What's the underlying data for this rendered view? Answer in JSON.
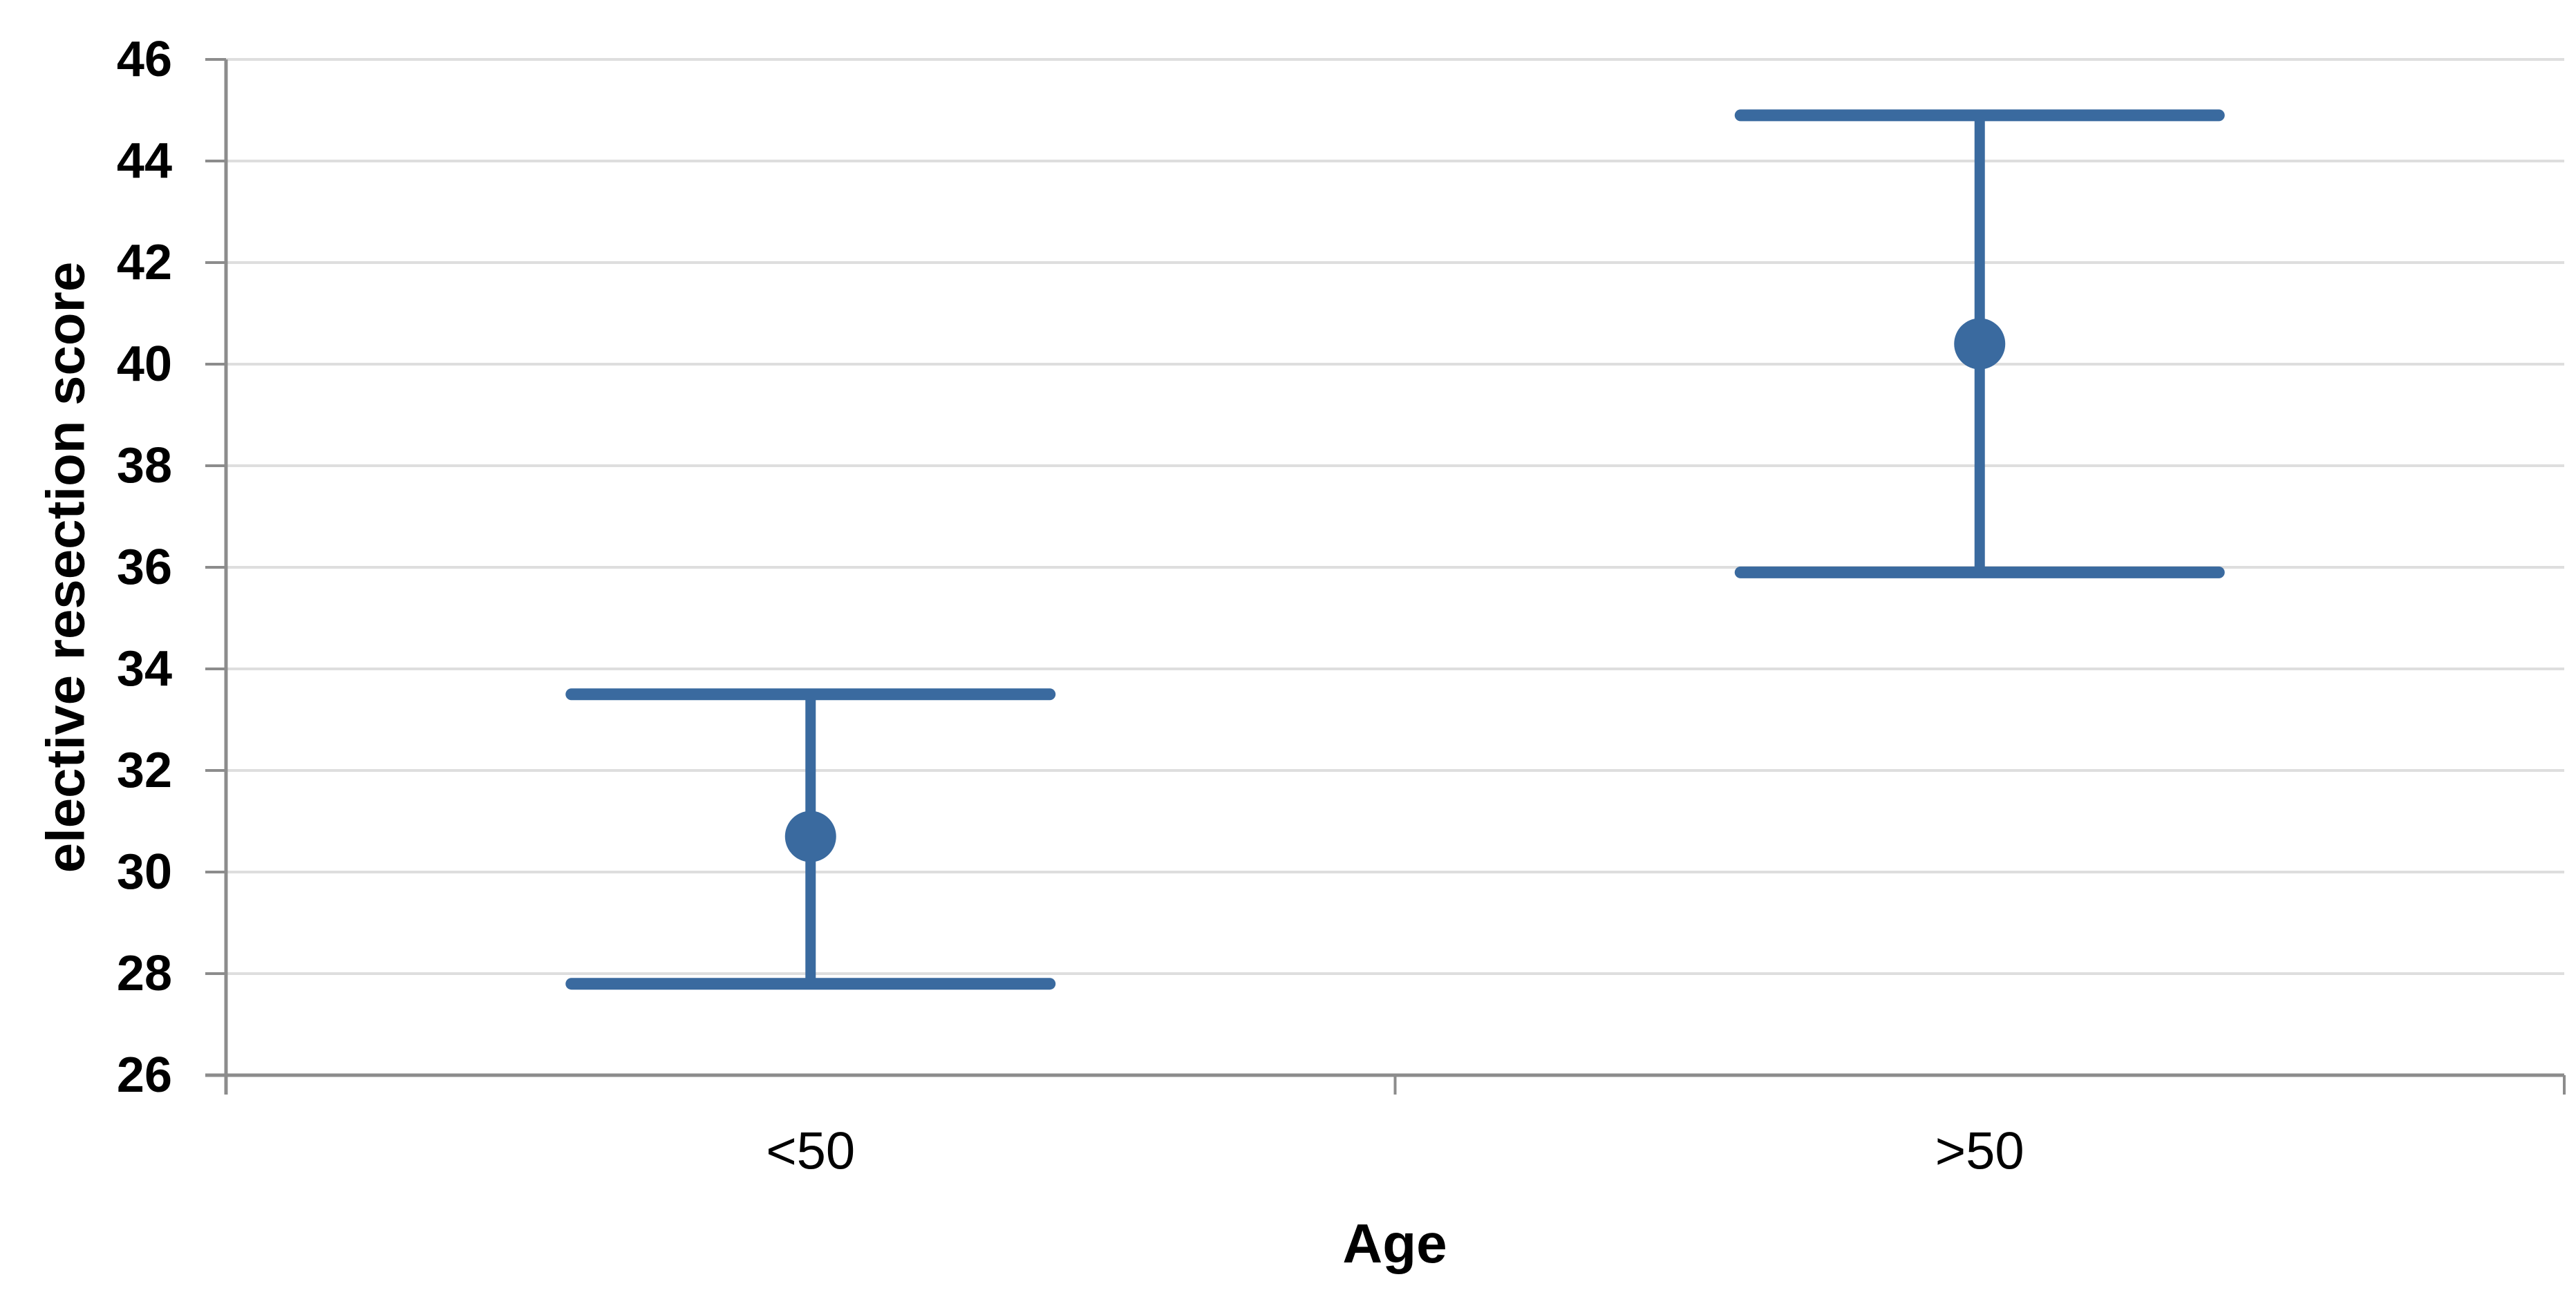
{
  "chart_data": {
    "type": "scatter",
    "subtype": "mean-with-error-bars",
    "title": "",
    "xlabel": "Age",
    "ylabel": "elective resection score",
    "categories": [
      "<50",
      ">50"
    ],
    "series": [
      {
        "name": "elective resection score",
        "points": [
          {
            "category": "<50",
            "mean": 30.7,
            "ci_low": 27.8,
            "ci_high": 33.5
          },
          {
            "category": ">50",
            "mean": 40.4,
            "ci_low": 35.9,
            "ci_high": 44.9
          }
        ]
      }
    ],
    "ylim": [
      26,
      46
    ],
    "yticks": [
      26,
      28,
      30,
      32,
      34,
      36,
      38,
      40,
      42,
      44,
      46
    ],
    "ytick_step": 2,
    "grid": true,
    "legend": false,
    "colors": {
      "series": "#3a6a9f",
      "gridline": "#dedede",
      "axis": "#8c8c8c",
      "text": "#000000",
      "background": "#ffffff"
    }
  }
}
